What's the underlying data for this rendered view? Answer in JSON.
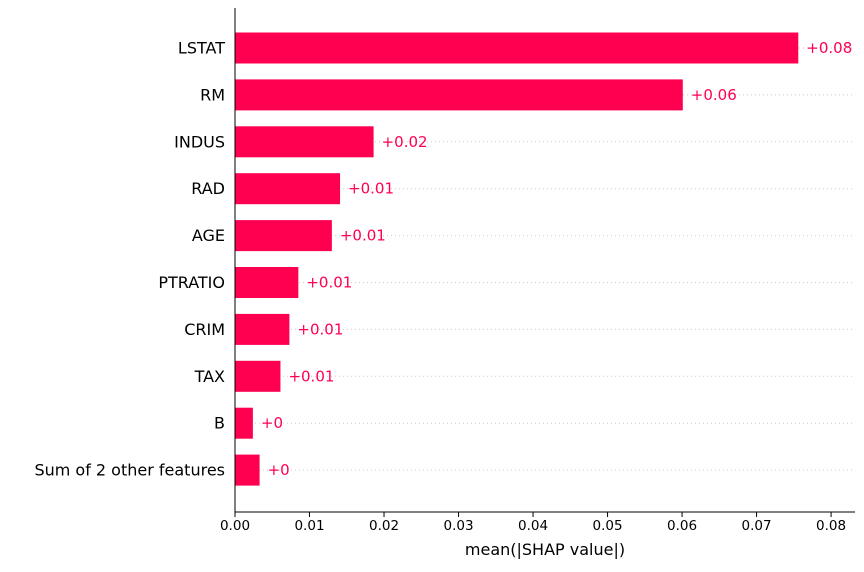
{
  "chart_data": {
    "type": "bar",
    "orientation": "horizontal",
    "title": "",
    "xlabel": "mean(|SHAP value|)",
    "ylabel": "",
    "categories": [
      "LSTAT",
      "RM",
      "INDUS",
      "RAD",
      "AGE",
      "PTRATIO",
      "CRIM",
      "TAX",
      "B",
      "Sum of 2 other features"
    ],
    "values": [
      0.0756,
      0.0601,
      0.0186,
      0.0141,
      0.013,
      0.0085,
      0.0073,
      0.0061,
      0.0024,
      0.0033
    ],
    "value_labels": [
      "+0.08",
      "+0.06",
      "+0.02",
      "+0.01",
      "+0.01",
      "+0.01",
      "+0.01",
      "+0.01",
      "+0",
      "+0"
    ],
    "xlim": [
      0.0,
      0.0835
    ],
    "xticks": [
      0.0,
      0.01,
      0.02,
      0.03,
      0.04,
      0.05,
      0.06,
      0.07,
      0.08
    ],
    "xtick_labels": [
      "0.00",
      "0.01",
      "0.02",
      "0.03",
      "0.04",
      "0.05",
      "0.06",
      "0.07",
      "0.08"
    ],
    "grid": "horizontal dotted guide lines per bar",
    "legend": "none",
    "colors": {
      "bar": "#ff0051",
      "value_label": "#ff0051",
      "gridline": "#cccccc",
      "axis": "#000000"
    }
  }
}
